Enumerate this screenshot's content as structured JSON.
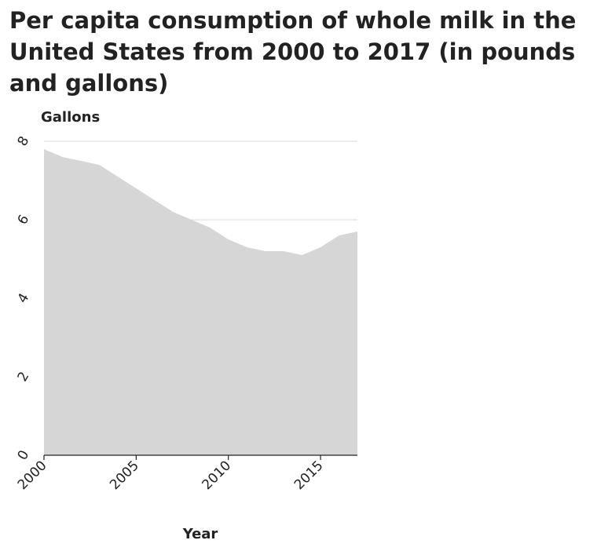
{
  "chart_data": {
    "type": "area",
    "title": "Per capita consumption of whole milk in the United States from 2000 to 2017 (in pounds and gallons)",
    "xlabel": "Year",
    "ylabel": "Gallons",
    "x": [
      2000,
      2001,
      2002,
      2003,
      2004,
      2005,
      2006,
      2007,
      2008,
      2009,
      2010,
      2011,
      2012,
      2013,
      2014,
      2015,
      2016,
      2017
    ],
    "series": [
      {
        "values": [
          7.8,
          7.6,
          7.5,
          7.4,
          7.1,
          6.8,
          6.5,
          6.2,
          6.0,
          5.8,
          5.5,
          5.3,
          5.2,
          5.2,
          5.1,
          5.3,
          5.6,
          5.7
        ]
      }
    ],
    "xlim": [
      2000,
      2017
    ],
    "ylim": [
      0,
      8
    ],
    "xticks": [
      "2000",
      "2005",
      "2010",
      "2015"
    ],
    "yticks": [
      "0",
      "2",
      "4",
      "6",
      "8"
    ],
    "grid": "horizontal",
    "legend": "none",
    "colors": {
      "area": "#d6d6d6",
      "grid": "#d9d9d9",
      "axis": "#222222",
      "text": "#222222"
    }
  }
}
